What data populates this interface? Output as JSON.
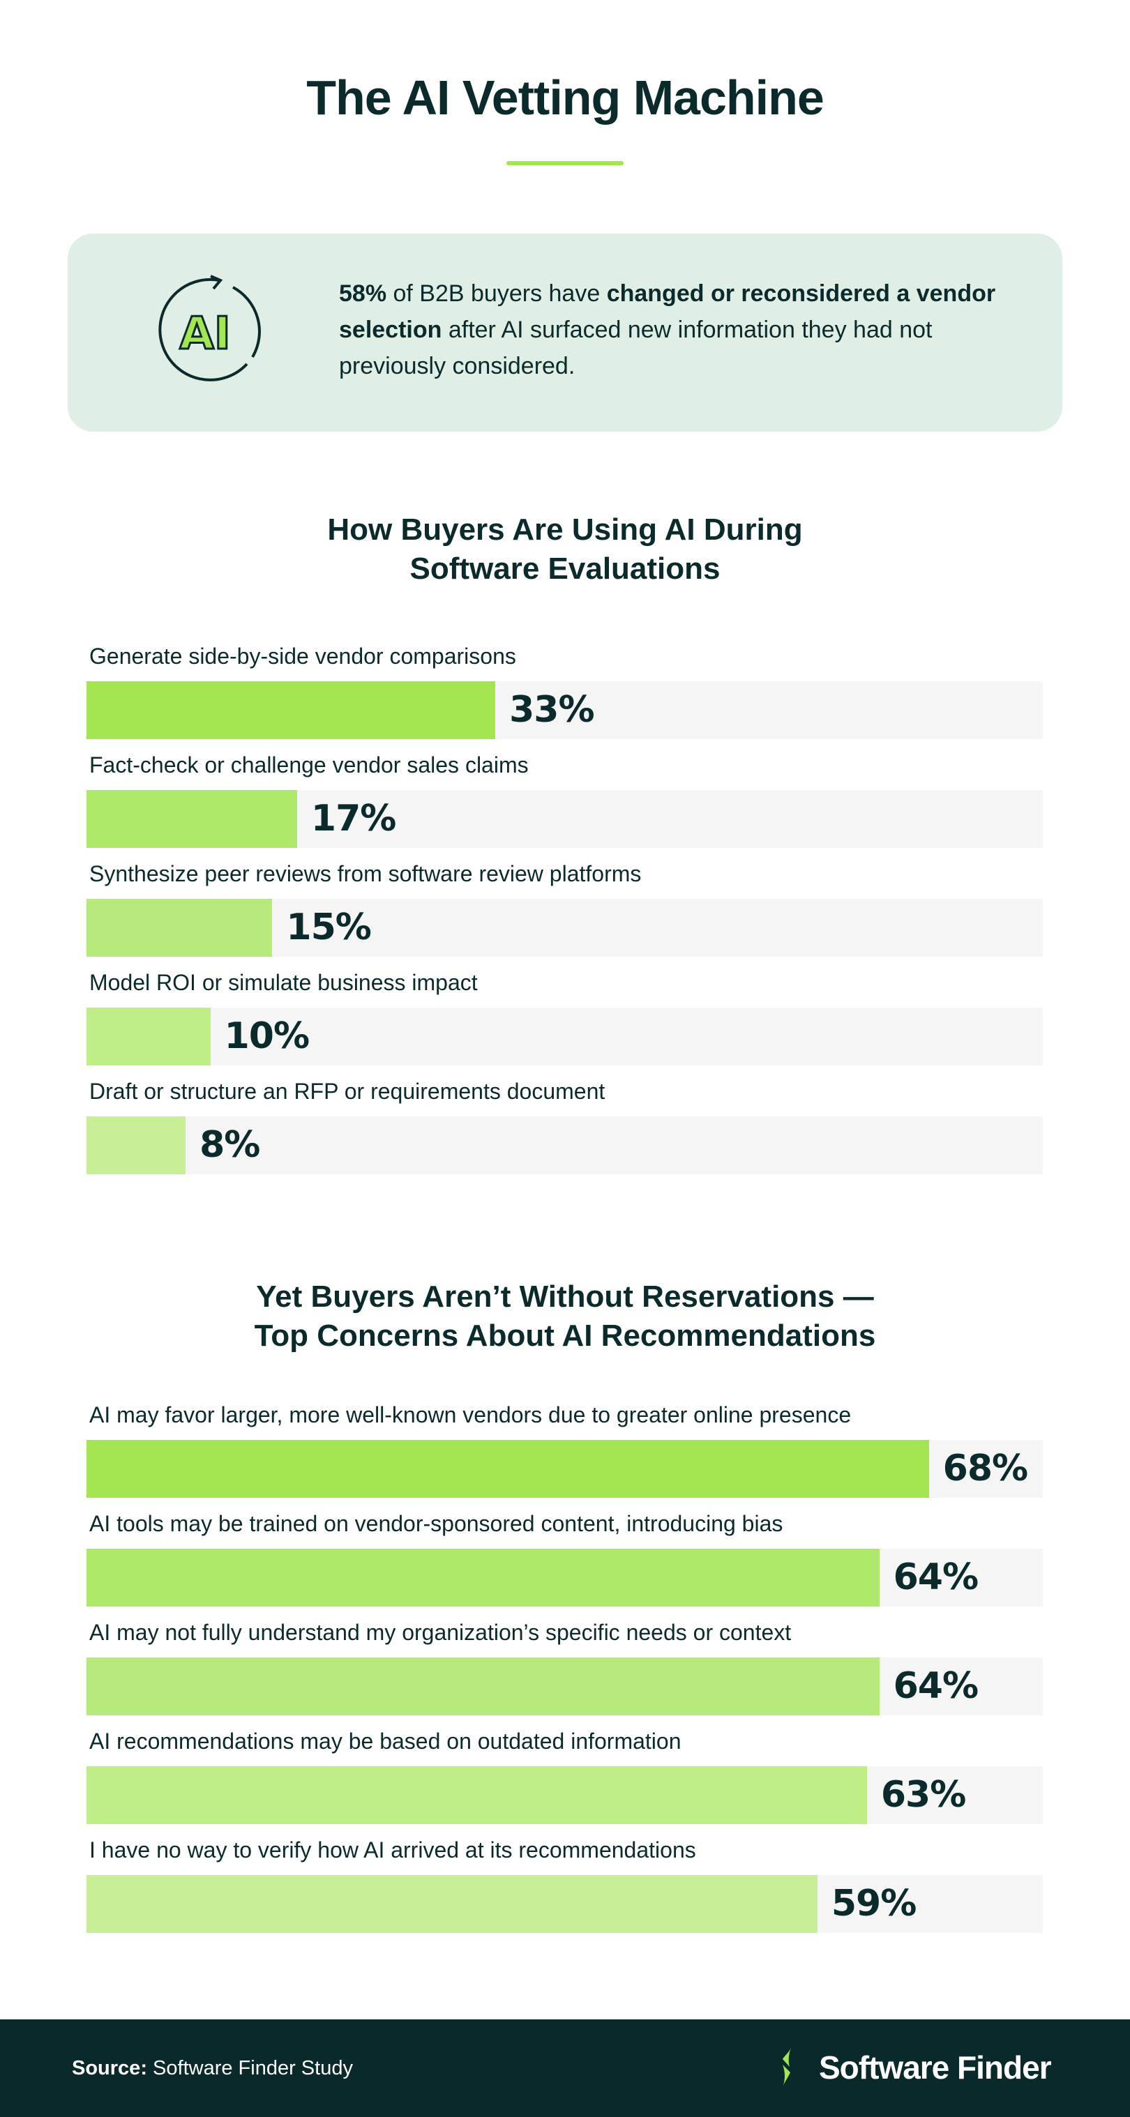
{
  "header": {
    "title": "The AI Vetting Machine"
  },
  "callout": {
    "icon": "ai-cycle-icon",
    "icon_text": "AI",
    "stat": "58%",
    "text_1": " of B2B buyers have ",
    "bold": "changed or reconsidered a vendor selection",
    "text_2": " after AI surfaced new information they had not previously considered."
  },
  "colors": {
    "dark": "#0b2a2b",
    "accent": "#a3e651",
    "track": "#f5f5f5",
    "callout_bg": "#e0efe6",
    "footer_bg": "#0a292b"
  },
  "chart_data": [
    {
      "type": "bar",
      "orientation": "horizontal",
      "title_line1": "How Buyers Are Using AI During",
      "title_line2": "Software Evaluations",
      "categories": [
        "Generate side-by-side vendor comparisons",
        "Fact-check or challenge vendor sales claims",
        "Synthesize peer reviews from software review platforms",
        "Model ROI or simulate business impact",
        "Draft or structure an RFP or requirements document"
      ],
      "values": [
        33,
        17,
        15,
        10,
        8
      ],
      "labels": [
        "33%",
        "17%",
        "15%",
        "10%",
        "8%"
      ],
      "colors": [
        "#a3e651",
        "#ade869",
        "#b6eb7b",
        "#bfee87",
        "#c8ef95"
      ],
      "unit": "%"
    },
    {
      "type": "bar",
      "orientation": "horizontal",
      "title_line1": "Yet Buyers Aren’t Without Reservations —",
      "title_line2": "Top Concerns About AI Recommendations",
      "categories": [
        "AI may favor larger, more well-known vendors due to greater online presence",
        "AI tools may be trained on vendor-sponsored content, introducing bias",
        "AI may not fully understand my organization’s specific needs or context",
        "AI recommendations may be based on outdated information",
        "I have no way to verify how AI arrived at its recommendations"
      ],
      "values": [
        68,
        64,
        64,
        63,
        59
      ],
      "labels": [
        "68%",
        "64%",
        "64%",
        "63%",
        "59%"
      ],
      "colors": [
        "#a3e651",
        "#ade869",
        "#b6eb7b",
        "#bfee87",
        "#c8ef95"
      ],
      "unit": "%"
    }
  ],
  "footer": {
    "source_label": "Source:",
    "source_value": " Software Finder Study",
    "brand": "Software Finder"
  }
}
